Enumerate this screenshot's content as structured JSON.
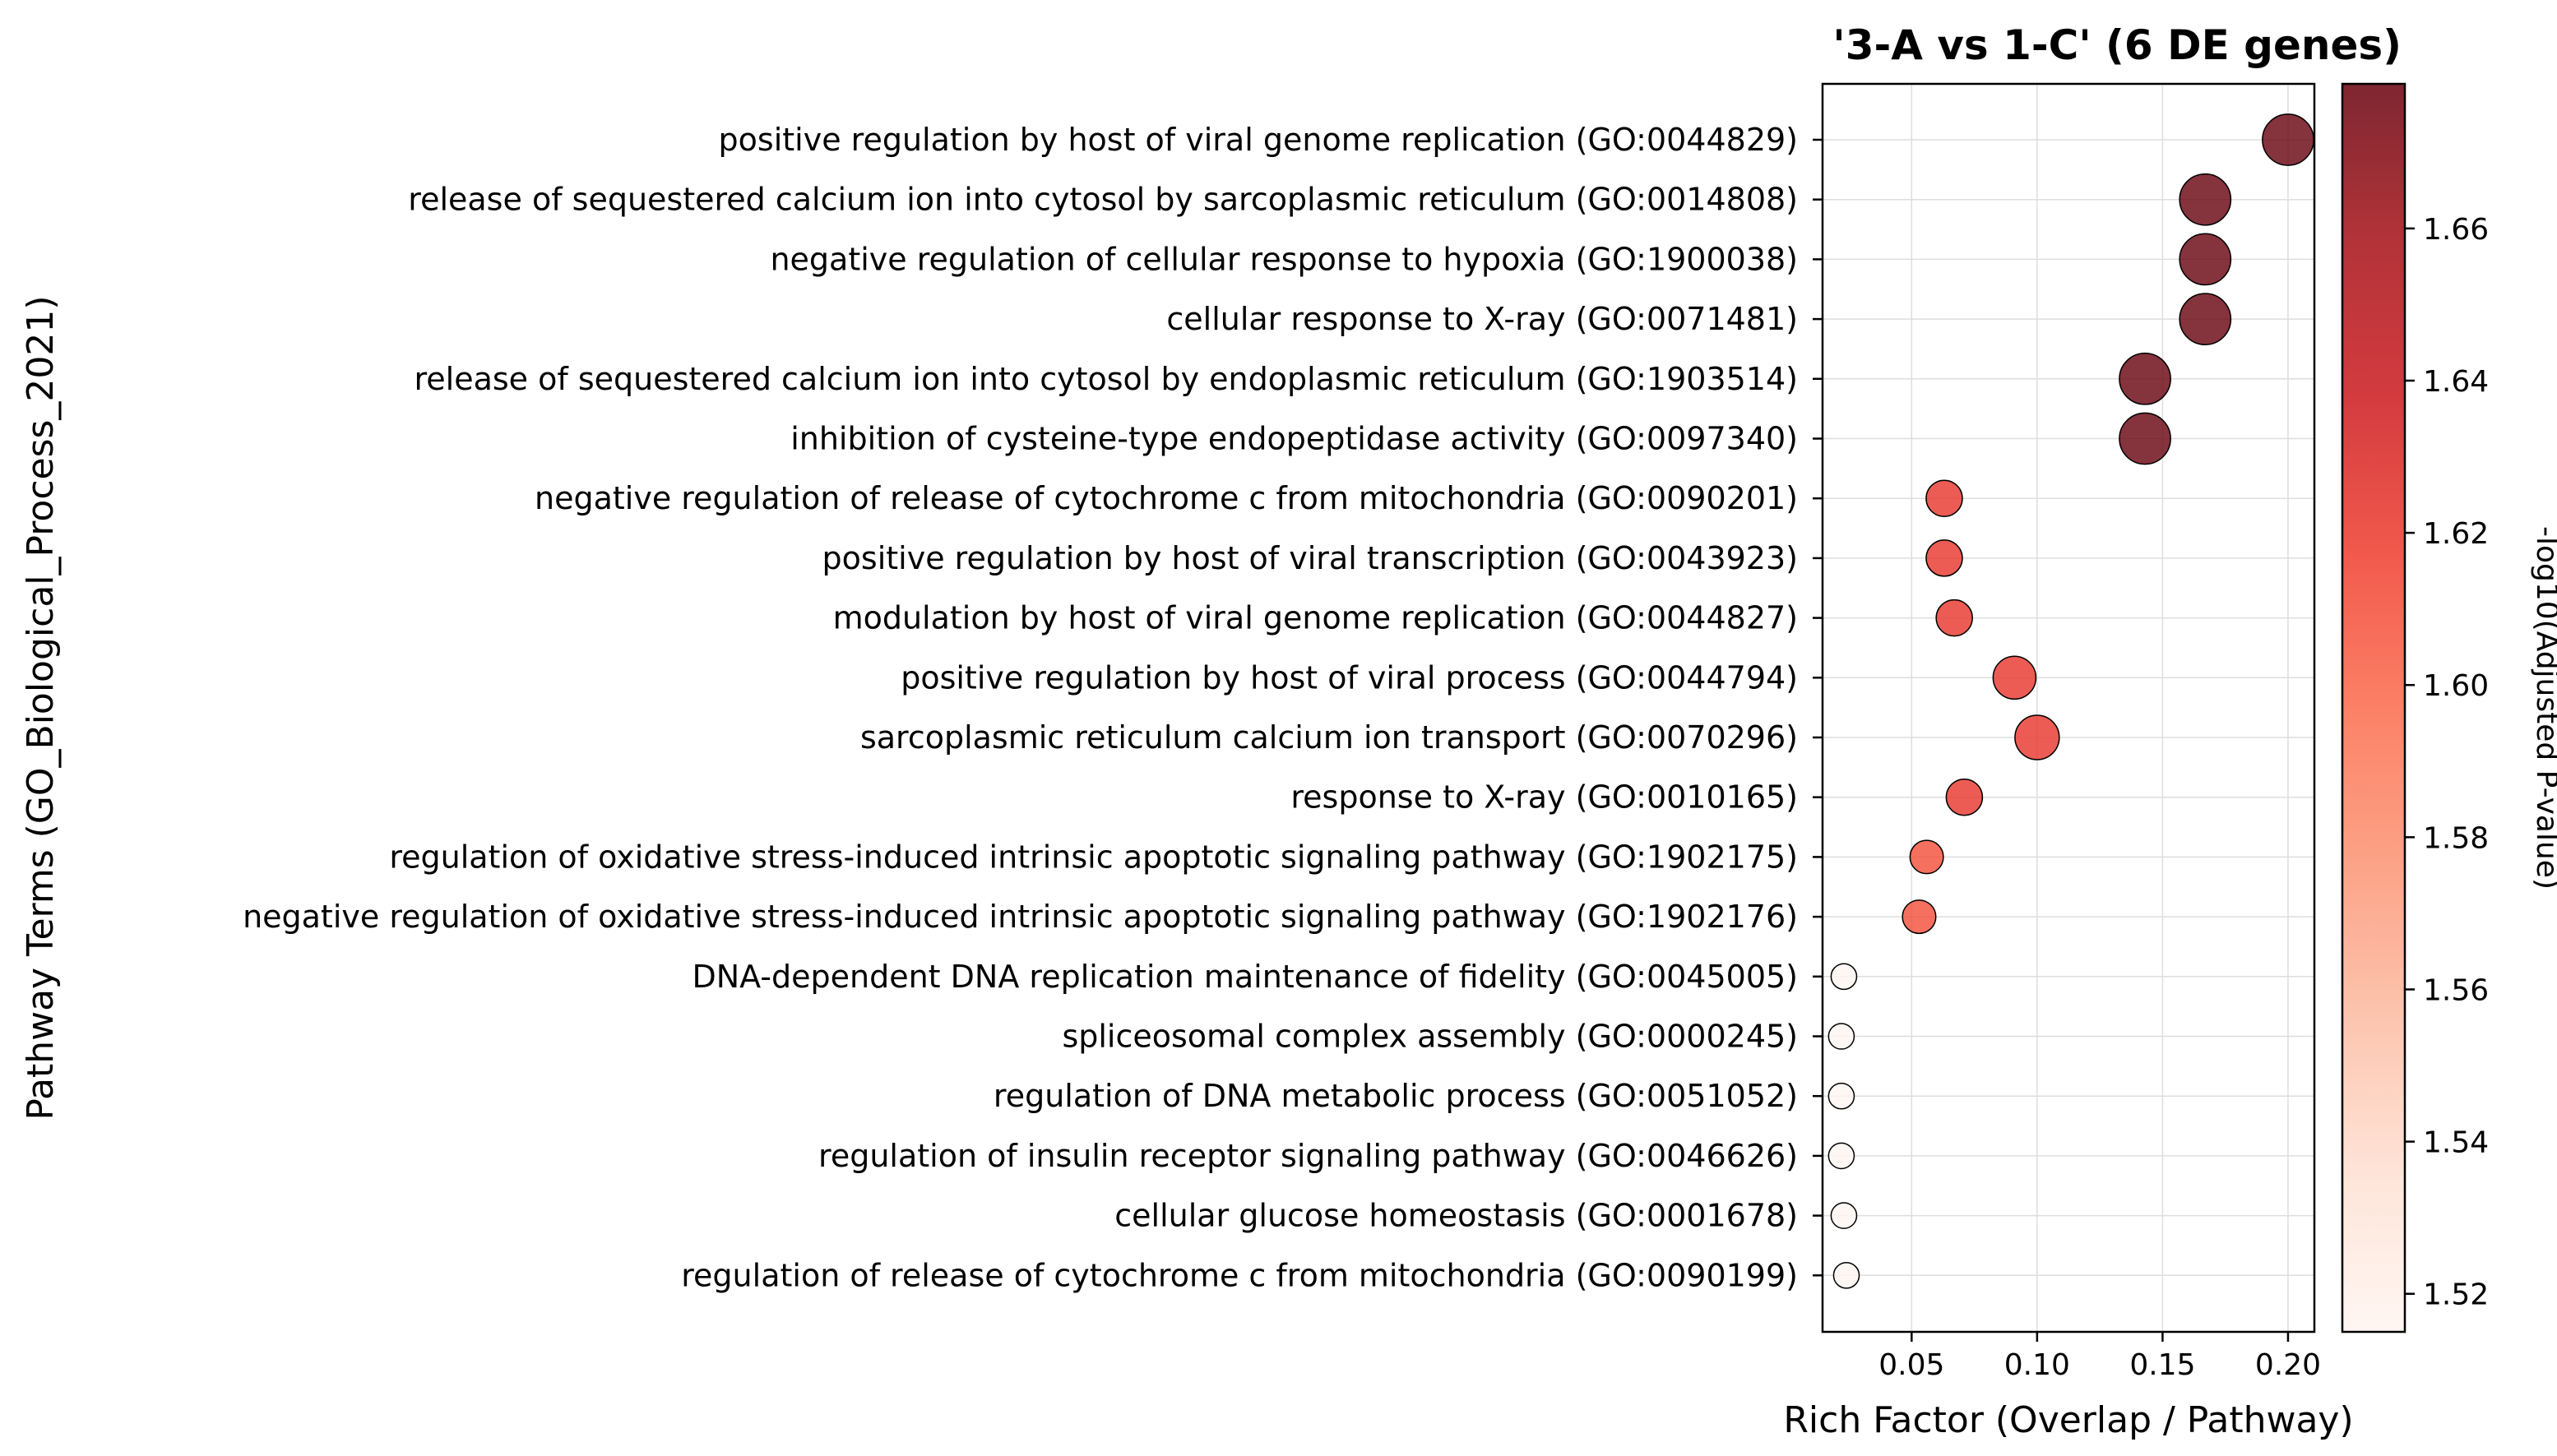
{
  "chart_data": {
    "type": "scatter",
    "title": "'3-A vs 1-C' (6 DE genes)",
    "xlabel": "Rich Factor (Overlap / Pathway)",
    "ylabel": "Pathway Terms (GO_Biological_Process_2021)",
    "xlim": [
      0.0145,
      0.2105
    ],
    "xticks": [
      0.05,
      0.1,
      0.15,
      0.2
    ],
    "xtick_labels": [
      "0.05",
      "0.10",
      "0.15",
      "0.20"
    ],
    "grid": true,
    "size_encoding": "overlap",
    "color_encoding": "-log10(Adjusted P-value)",
    "colorbar": {
      "label": "-log10(Adjusted P-value)",
      "range": [
        1.515,
        1.679
      ],
      "ticks": [
        1.52,
        1.54,
        1.56,
        1.58,
        1.6,
        1.62,
        1.64,
        1.66
      ],
      "tick_labels": [
        "1.52",
        "1.54",
        "1.56",
        "1.58",
        "1.60",
        "1.62",
        "1.64",
        "1.66"
      ],
      "colormap": "Reds",
      "stops": [
        "#fff5f0",
        "#fee0d2",
        "#fcbba1",
        "#fc9272",
        "#fb6a4a",
        "#ef3b2c",
        "#cb181d",
        "#a50f15",
        "#67000d"
      ]
    },
    "points": [
      {
        "term": "positive regulation by host of viral genome replication (GO:0044829)",
        "x": 0.2,
        "neglog10p": 1.679,
        "size": 2
      },
      {
        "term": "release of sequestered calcium ion into cytosol by sarcoplasmic reticulum (GO:0014808)",
        "x": 0.167,
        "neglog10p": 1.679,
        "size": 2
      },
      {
        "term": "negative regulation of cellular response to hypoxia (GO:1900038)",
        "x": 0.167,
        "neglog10p": 1.679,
        "size": 2
      },
      {
        "term": "cellular response to X-ray (GO:0071481)",
        "x": 0.167,
        "neglog10p": 1.679,
        "size": 2
      },
      {
        "term": "release of sequestered calcium ion into cytosol by endoplasmic reticulum (GO:1903514)",
        "x": 0.143,
        "neglog10p": 1.679,
        "size": 2
      },
      {
        "term": "inhibition of cysteine-type endopeptidase activity (GO:0097340)",
        "x": 0.143,
        "neglog10p": 1.679,
        "size": 2
      },
      {
        "term": "negative regulation of release of cytochrome c from mitochondria (GO:0090201)",
        "x": 0.063,
        "neglog10p": 1.622,
        "size": 1
      },
      {
        "term": "positive regulation by host of viral transcription (GO:0043923)",
        "x": 0.063,
        "neglog10p": 1.622,
        "size": 1
      },
      {
        "term": "modulation by host of viral genome replication (GO:0044827)",
        "x": 0.067,
        "neglog10p": 1.622,
        "size": 1
      },
      {
        "term": "positive regulation by host of viral process (GO:0044794)",
        "x": 0.091,
        "neglog10p": 1.622,
        "size": 1.4
      },
      {
        "term": "sarcoplasmic reticulum calcium ion transport (GO:0070296)",
        "x": 0.1,
        "neglog10p": 1.622,
        "size": 1.5
      },
      {
        "term": "response to X-ray (GO:0010165)",
        "x": 0.071,
        "neglog10p": 1.622,
        "size": 1
      },
      {
        "term": "regulation of oxidative stress-induced intrinsic apoptotic signaling pathway (GO:1902175)",
        "x": 0.056,
        "neglog10p": 1.61,
        "size": 0.85
      },
      {
        "term": "negative regulation of oxidative stress-induced intrinsic apoptotic signaling pathway (GO:1902176)",
        "x": 0.053,
        "neglog10p": 1.61,
        "size": 0.85
      },
      {
        "term": "DNA-dependent DNA replication maintenance of fidelity (GO:0045005)",
        "x": 0.023,
        "neglog10p": 1.515,
        "size": 0.5
      },
      {
        "term": "spliceosomal complex assembly (GO:0000245)",
        "x": 0.022,
        "neglog10p": 1.515,
        "size": 0.5
      },
      {
        "term": "regulation of DNA metabolic process (GO:0051052)",
        "x": 0.022,
        "neglog10p": 1.515,
        "size": 0.5
      },
      {
        "term": "regulation of insulin receptor signaling pathway (GO:0046626)",
        "x": 0.022,
        "neglog10p": 1.515,
        "size": 0.5
      },
      {
        "term": "cellular glucose homeostasis (GO:0001678)",
        "x": 0.023,
        "neglog10p": 1.515,
        "size": 0.5
      },
      {
        "term": "regulation of release of cytochrome c from mitochondria (GO:0090199)",
        "x": 0.024,
        "neglog10p": 1.515,
        "size": 0.5
      }
    ]
  }
}
